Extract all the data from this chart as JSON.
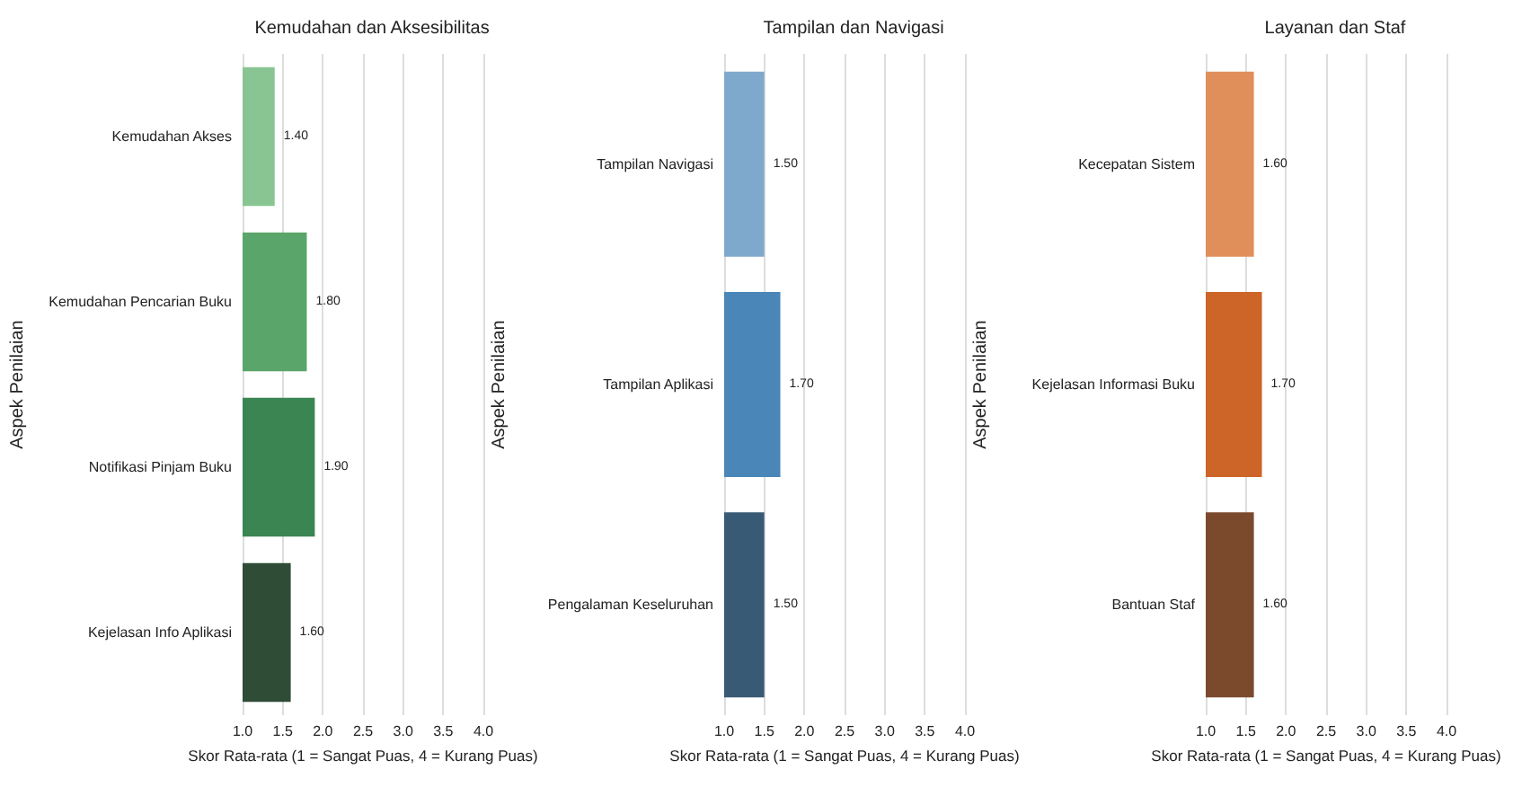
{
  "chart_data": [
    {
      "type": "bar",
      "orientation": "horizontal",
      "title": "Kemudahan dan Aksesibilitas",
      "xlabel": "Skor Rata-rata (1 = Sangat Puas, 4 = Kurang Puas)",
      "ylabel": "Aspek Penilaian",
      "categories": [
        "Kemudahan Akses",
        "Kemudahan Pencarian Buku",
        "Notifikasi Pinjam Buku",
        "Kejelasan Info Aplikasi"
      ],
      "values": [
        1.4,
        1.8,
        1.9,
        1.6
      ],
      "value_labels": [
        "1.40",
        "1.80",
        "1.90",
        "1.60"
      ],
      "colors": [
        "#88c592",
        "#5aa56a",
        "#3b8552",
        "#2f4c37"
      ],
      "xlim": [
        1,
        4
      ],
      "xticks": [
        {
          "value": 1,
          "label": "1.0"
        },
        {
          "value": 1.5,
          "label": "1.5"
        },
        {
          "value": 2,
          "label": "2.0"
        },
        {
          "value": 2.5,
          "label": "2.5"
        },
        {
          "value": 3,
          "label": "3.0"
        },
        {
          "value": 3.5,
          "label": "3.5"
        },
        {
          "value": 4,
          "label": "4.0"
        }
      ],
      "grid": "x"
    },
    {
      "type": "bar",
      "orientation": "horizontal",
      "title": "Tampilan dan Navigasi",
      "xlabel": "Skor Rata-rata (1 = Sangat Puas, 4 = Kurang Puas)",
      "ylabel": "Aspek Penilaian",
      "categories": [
        "Tampilan Navigasi",
        "Tampilan Aplikasi",
        "Pengalaman Keseluruhan"
      ],
      "values": [
        1.5,
        1.7,
        1.5
      ],
      "value_labels": [
        "1.50",
        "1.70",
        "1.50"
      ],
      "colors": [
        "#7ea9cc",
        "#4a86b7",
        "#395a74"
      ],
      "xlim": [
        1,
        4
      ],
      "xticks": [
        {
          "value": 1,
          "label": "1.0"
        },
        {
          "value": 1.5,
          "label": "1.5"
        },
        {
          "value": 2,
          "label": "2.0"
        },
        {
          "value": 2.5,
          "label": "2.5"
        },
        {
          "value": 3,
          "label": "3.0"
        },
        {
          "value": 3.5,
          "label": "3.5"
        },
        {
          "value": 4,
          "label": "4.0"
        }
      ],
      "grid": "x"
    },
    {
      "type": "bar",
      "orientation": "horizontal",
      "title": "Layanan dan Staf",
      "xlabel": "Skor Rata-rata (1 = Sangat Puas, 4 = Kurang Puas)",
      "ylabel": "Aspek Penilaian",
      "categories": [
        "Kecepatan Sistem",
        "Kejelasan Informasi Buku",
        "Bantuan Staf"
      ],
      "values": [
        1.6,
        1.7,
        1.6
      ],
      "value_labels": [
        "1.60",
        "1.70",
        "1.60"
      ],
      "colors": [
        "#e08e5a",
        "#cd6428",
        "#7b4a2d"
      ],
      "xlim": [
        1,
        4
      ],
      "xticks": [
        {
          "value": 1,
          "label": "1.0"
        },
        {
          "value": 1.5,
          "label": "1.5"
        },
        {
          "value": 2,
          "label": "2.0"
        },
        {
          "value": 2.5,
          "label": "2.5"
        },
        {
          "value": 3,
          "label": "3.0"
        },
        {
          "value": 3.5,
          "label": "3.5"
        },
        {
          "value": 4,
          "label": "4.0"
        }
      ],
      "grid": "x"
    }
  ]
}
